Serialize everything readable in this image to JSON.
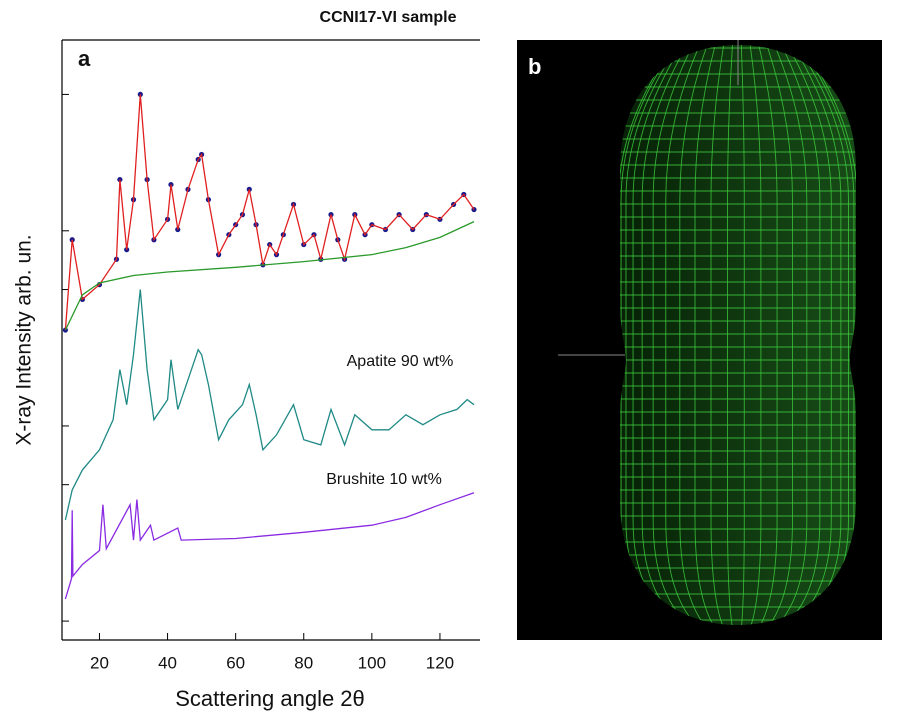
{
  "chart_data": {
    "type": "line",
    "title": "CCNI17-VI sample",
    "panel_labels": [
      "a",
      "b"
    ],
    "xlabel": "Scattering angle 2θ",
    "ylabel": "X-ray Intensity arb. un.",
    "xlim": [
      9,
      130
    ],
    "xticks": [
      20,
      40,
      60,
      80,
      100,
      120
    ],
    "yscale": "log",
    "ylim": [
      0.16,
      190
    ],
    "yticks": [
      0.2,
      1,
      2,
      10,
      20,
      100
    ],
    "annotations": [
      "Apatite 90 wt%",
      "Brushite 10 wt%"
    ],
    "series": [
      {
        "color": "#1a1a8c",
        "marker": true,
        "x": [
          10,
          12,
          15,
          20,
          25,
          26,
          28,
          30,
          32,
          34,
          36,
          40,
          41,
          43,
          46,
          49,
          50,
          52,
          55,
          58,
          60,
          62,
          64,
          66,
          68,
          70,
          72,
          74,
          77,
          80,
          83,
          85,
          88,
          90,
          92,
          95,
          98,
          100,
          104,
          108,
          112,
          116,
          120,
          124,
          127,
          130
        ],
        "values": [
          6.2,
          18.0,
          8.9,
          10.6,
          14.3,
          36.6,
          16.0,
          28.9,
          100,
          36.6,
          18.0,
          22.9,
          34.5,
          20.3,
          32.6,
          46.4,
          49.2,
          28.9,
          15.1,
          19.1,
          21.5,
          24.2,
          32.6,
          21.5,
          13.4,
          17.0,
          15.1,
          19.1,
          27.3,
          17.0,
          19.1,
          14.3,
          24.2,
          18.0,
          14.3,
          24.2,
          19.1,
          21.5,
          20.3,
          24.2,
          20.3,
          24.2,
          22.9,
          27.3,
          30.7,
          25.7
        ]
      },
      {
        "color": "#e02020",
        "x": [
          10,
          12,
          15,
          20,
          25,
          26,
          28,
          30,
          32,
          34,
          36,
          40,
          41,
          43,
          46,
          49,
          50,
          52,
          55,
          58,
          60,
          62,
          64,
          66,
          68,
          70,
          72,
          74,
          77,
          80,
          83,
          85,
          88,
          90,
          92,
          95,
          98,
          100,
          104,
          108,
          112,
          116,
          120,
          124,
          127,
          130
        ],
        "values": [
          6.2,
          18.0,
          8.9,
          10.6,
          14.3,
          36.6,
          16.0,
          28.9,
          100,
          36.6,
          18.0,
          22.9,
          34.5,
          20.3,
          32.6,
          46.4,
          49.2,
          28.9,
          15.1,
          19.1,
          21.5,
          24.2,
          32.6,
          21.5,
          13.4,
          17.0,
          15.1,
          19.1,
          27.3,
          17.0,
          19.1,
          14.3,
          24.2,
          18.0,
          14.3,
          24.2,
          19.1,
          21.5,
          20.3,
          24.2,
          20.3,
          24.2,
          22.9,
          27.3,
          30.7,
          25.7
        ]
      },
      {
        "color": "#2a9a2a",
        "x": [
          10,
          15,
          20,
          30,
          40,
          60,
          80,
          100,
          110,
          120,
          130
        ],
        "values": [
          6.2,
          9.4,
          10.8,
          11.8,
          12.3,
          13.0,
          13.9,
          15.1,
          16.4,
          18.5,
          22.3
        ]
      },
      {
        "color": "#1f8a86",
        "x": [
          10,
          12,
          15,
          20,
          24,
          26,
          28,
          30,
          32,
          34,
          36,
          40,
          41,
          43,
          46,
          49,
          50,
          52,
          55,
          58,
          62,
          64,
          66,
          68,
          72,
          77,
          80,
          85,
          88,
          92,
          95,
          100,
          105,
          110,
          115,
          120,
          125,
          128,
          130
        ],
        "values": [
          0.66,
          0.94,
          1.19,
          1.51,
          2.15,
          3.89,
          2.57,
          4.64,
          10,
          3.89,
          2.15,
          2.73,
          4.37,
          2.43,
          3.45,
          4.92,
          4.64,
          3.26,
          1.7,
          2.15,
          2.57,
          3.26,
          2.28,
          1.51,
          1.8,
          2.57,
          1.7,
          1.6,
          2.43,
          1.6,
          2.28,
          1.91,
          1.91,
          2.28,
          2.03,
          2.28,
          2.43,
          2.73,
          2.57
        ]
      },
      {
        "color": "#8a2be2",
        "x": [
          10,
          11.8,
          12,
          12.2,
          15,
          20,
          21,
          22,
          29,
          30,
          31,
          32,
          35,
          36,
          43,
          44,
          60,
          80,
          100,
          110,
          120,
          130
        ],
        "values": [
          0.26,
          0.33,
          0.74,
          0.34,
          0.39,
          0.46,
          0.79,
          0.47,
          0.79,
          0.52,
          0.84,
          0.52,
          0.62,
          0.52,
          0.6,
          0.52,
          0.53,
          0.57,
          0.62,
          0.68,
          0.79,
          0.91
        ]
      }
    ]
  }
}
